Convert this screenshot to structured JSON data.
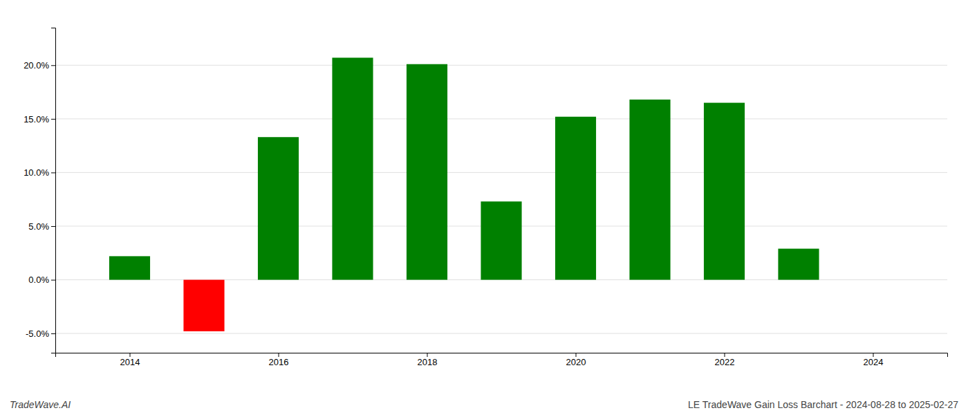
{
  "chart_data": {
    "type": "bar",
    "x": [
      2014,
      2015,
      2016,
      2017,
      2018,
      2019,
      2020,
      2021,
      2022,
      2023
    ],
    "values": [
      0.022,
      -0.048,
      0.133,
      0.207,
      0.201,
      0.073,
      0.152,
      0.168,
      0.165,
      0.029
    ],
    "colors": [
      "#008000",
      "#ff0000",
      "#008000",
      "#008000",
      "#008000",
      "#008000",
      "#008000",
      "#008000",
      "#008000",
      "#008000"
    ],
    "xlim": [
      2013.0,
      2025.0
    ],
    "xticks": [
      2014,
      2016,
      2018,
      2020,
      2022,
      2024
    ],
    "ylim": [
      -0.068,
      0.235
    ],
    "yticks": [
      {
        "value": -0.05,
        "label": "-5.0%"
      },
      {
        "value": 0.0,
        "label": "0.0%"
      },
      {
        "value": 0.05,
        "label": "5.0%"
      },
      {
        "value": 0.1,
        "label": "10.0%"
      },
      {
        "value": 0.15,
        "label": "15.0%"
      },
      {
        "value": 0.2,
        "label": "20.0%"
      }
    ],
    "grid": true,
    "annotations": [
      "TradeWave.AI",
      "LE TradeWave Gain Loss Barchart - 2024-08-28 to 2025-02-27"
    ]
  }
}
